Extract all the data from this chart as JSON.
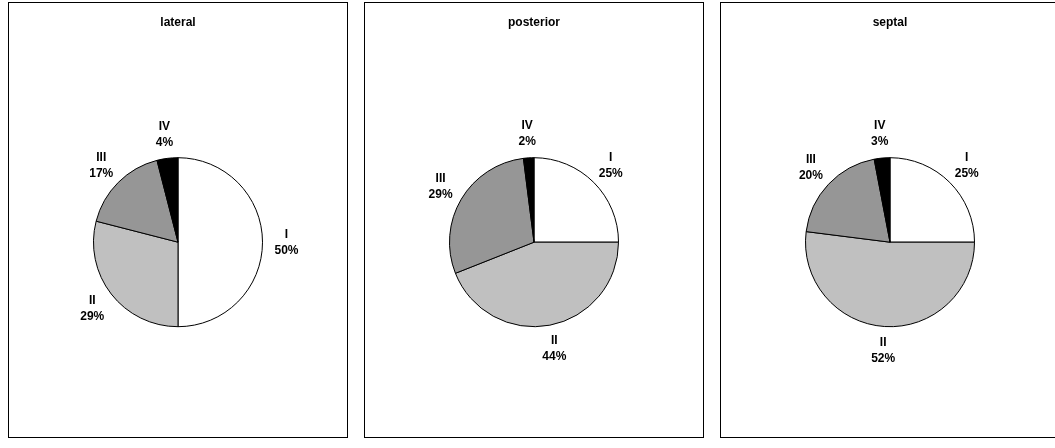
{
  "chart_data": [
    {
      "type": "pie",
      "title": "lateral",
      "categories": [
        "I",
        "II",
        "III",
        "IV"
      ],
      "values": [
        50,
        29,
        17,
        4
      ],
      "colors": [
        "#ffffff",
        "#c0c0c0",
        "#969696",
        "#000000"
      ],
      "value_labels": [
        "50%",
        "29%",
        "17%",
        "4%"
      ]
    },
    {
      "type": "pie",
      "title": "posterior",
      "categories": [
        "I",
        "II",
        "III",
        "IV"
      ],
      "values": [
        25,
        44,
        29,
        2
      ],
      "colors": [
        "#ffffff",
        "#c0c0c0",
        "#969696",
        "#000000"
      ],
      "value_labels": [
        "25%",
        "44%",
        "29%",
        "2%"
      ]
    },
    {
      "type": "pie",
      "title": "septal",
      "categories": [
        "I",
        "II",
        "III",
        "IV"
      ],
      "values": [
        25,
        52,
        20,
        3
      ],
      "colors": [
        "#ffffff",
        "#c0c0c0",
        "#969696",
        "#000000"
      ],
      "value_labels": [
        "25%",
        "52%",
        "20%",
        "3%"
      ]
    }
  ]
}
